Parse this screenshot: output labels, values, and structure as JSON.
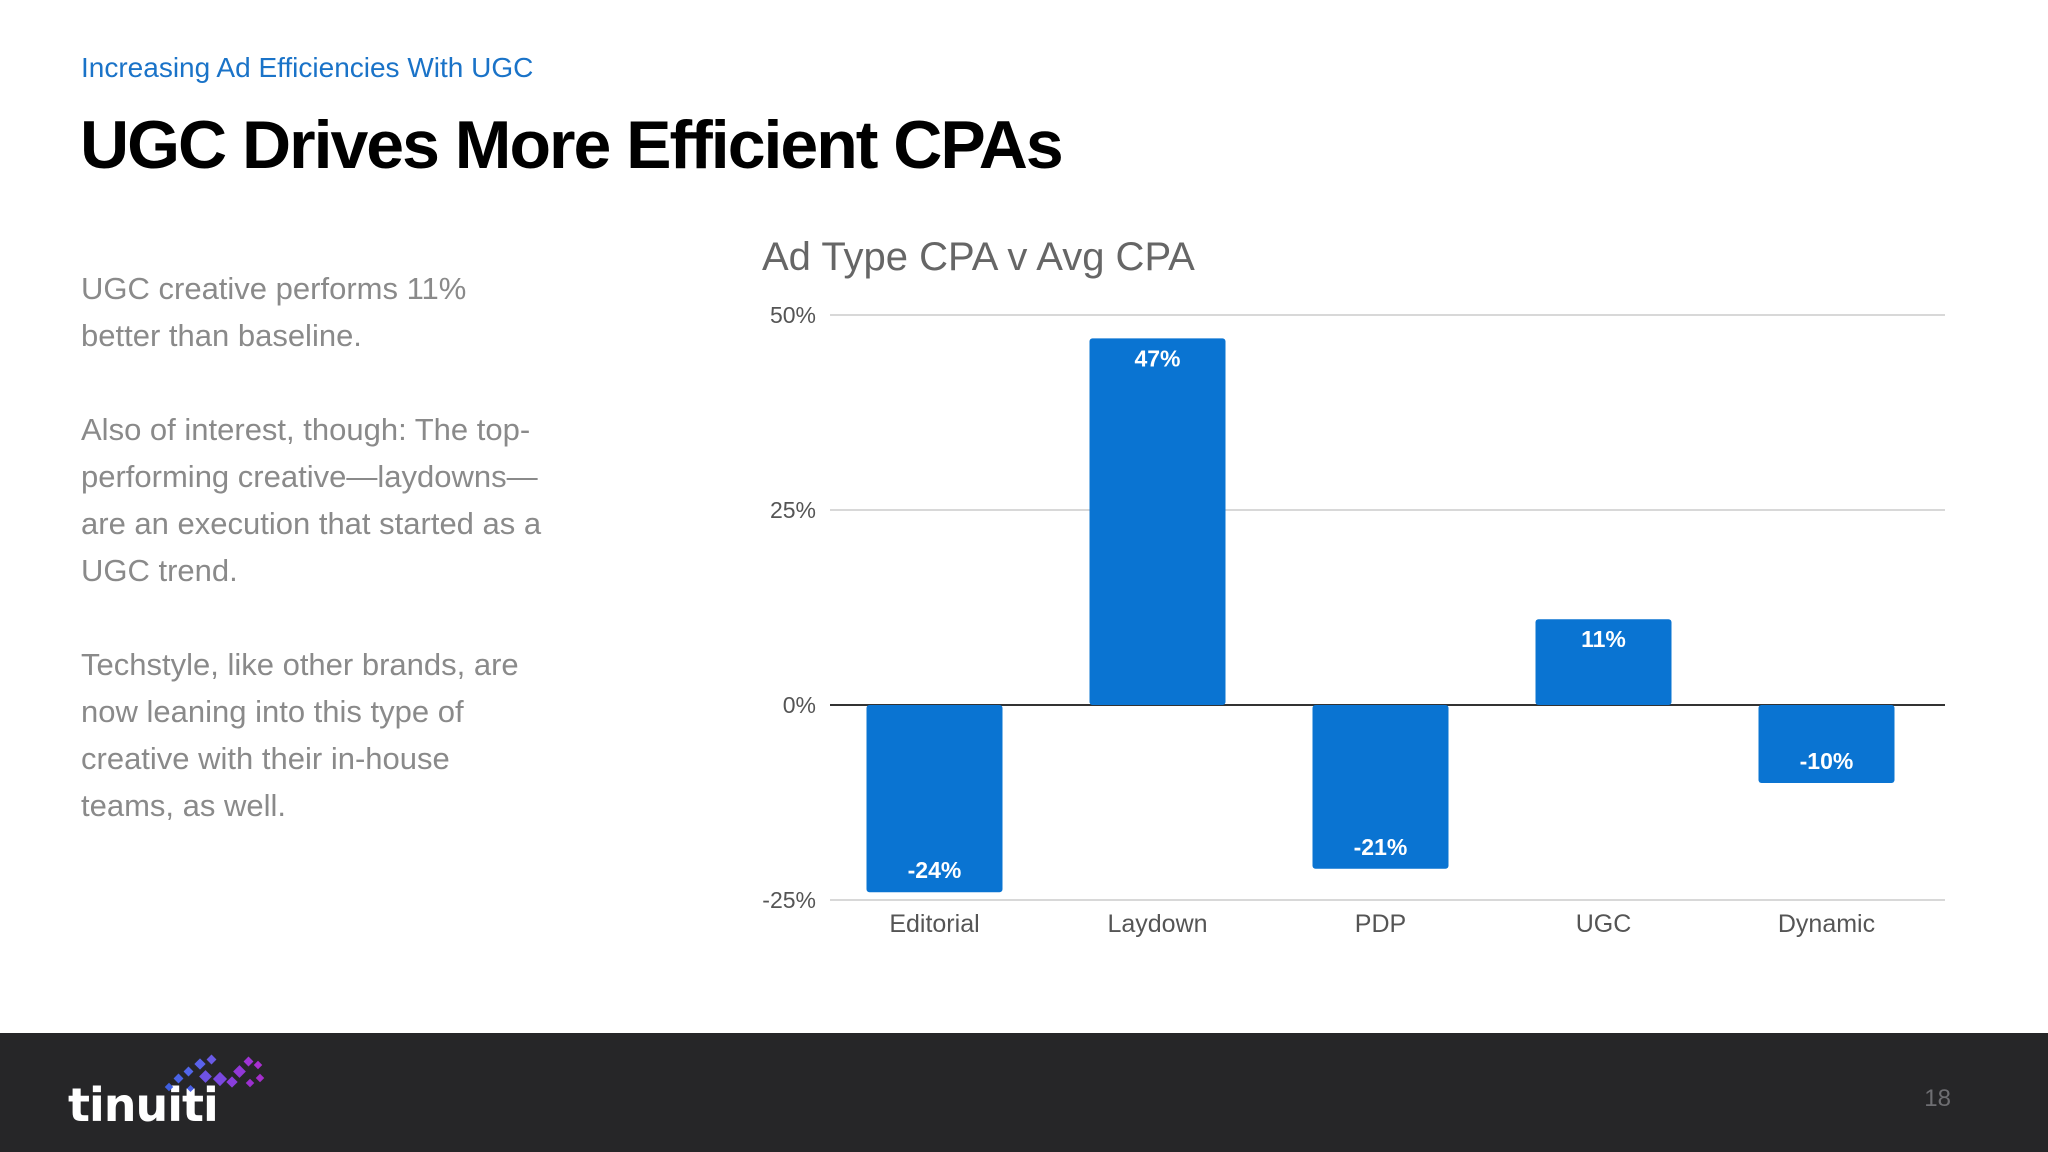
{
  "slide": {
    "subtitle": "Increasing Ad Efficiencies With UGC",
    "title": "UGC Drives More Efficient CPAs",
    "paragraphs": [
      "UGC creative performs 11% better than baseline.",
      "Also of interest, though: The top-performing creative—laydowns—are an execution that started as a UGC trend.",
      "Techstyle, like other brands, are now leaning into this type of creative with their in-house teams, as well."
    ],
    "page_number": "18"
  },
  "brand": {
    "logo_text": "tinuiti",
    "logo_icon": "tinuiti-infinity-dots-icon"
  },
  "colors": {
    "accent": "#1a73c8",
    "bar": "#0a74d2",
    "footer": "#262628"
  },
  "chart_data": {
    "type": "bar",
    "title": "Ad Type CPA v Avg CPA",
    "xlabel": "",
    "ylabel": "",
    "categories": [
      "Editorial",
      "Laydown",
      "PDP",
      "UGC",
      "Dynamic"
    ],
    "values": [
      -24,
      47,
      -21,
      11,
      -10
    ],
    "data_labels": [
      "-24%",
      "47%",
      "-21%",
      "11%",
      "-10%"
    ],
    "ylim": [
      -25,
      50
    ],
    "yticks": [
      50,
      25,
      0,
      -25
    ],
    "ytick_labels": [
      "50%",
      "25%",
      "0%",
      "-25%"
    ],
    "grid": true,
    "legend": "none"
  }
}
